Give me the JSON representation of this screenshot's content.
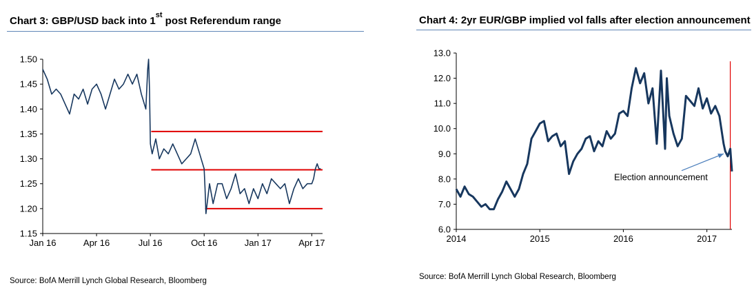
{
  "charts": [
    {
      "title_pre": "Chart 3: GBP/USD back into 1",
      "title_sup": "st",
      "title_post": " post Referendum range",
      "source": "Source: BofA Merrill Lynch Global Research, Bloomberg"
    },
    {
      "title": "Chart 4: 2yr EUR/GBP implied vol falls after election announcement",
      "source": "Source: BofA Merrill Lynch Global Research, Bloomberg"
    }
  ],
  "colors": {
    "series": "#17375e",
    "range_line": "#e00000",
    "title_rule": "#5f86b6",
    "arrow": "#4f81bd",
    "axis": "#000000"
  },
  "chart_data": [
    {
      "type": "line",
      "title": "Chart 3: GBP/USD back into 1st post Referendum range",
      "xlabel": "",
      "ylabel": "",
      "x_ticks": [
        "Jan 16",
        "Apr 16",
        "Jul 16",
        "Oct 16",
        "Jan 17",
        "Apr 17"
      ],
      "x_tick_pos": [
        0,
        3,
        6,
        9,
        12,
        15
      ],
      "xlim": [
        0,
        15.6
      ],
      "ylim": [
        1.15,
        1.5
      ],
      "y_ticks": [
        1.5,
        1.45,
        1.4,
        1.35,
        1.3,
        1.25,
        1.2,
        1.15
      ],
      "series": [
        {
          "name": "GBP/USD",
          "x": [
            0,
            0.25,
            0.5,
            0.75,
            1,
            1.25,
            1.5,
            1.75,
            2,
            2.25,
            2.5,
            2.75,
            3,
            3.25,
            3.5,
            3.75,
            4,
            4.25,
            4.5,
            4.75,
            5,
            5.25,
            5.5,
            5.75,
            5.85,
            5.9,
            5.95,
            6,
            6.1,
            6.3,
            6.5,
            6.75,
            7,
            7.25,
            7.5,
            7.75,
            8,
            8.25,
            8.5,
            8.75,
            9,
            9.05,
            9.1,
            9.2,
            9.3,
            9.5,
            9.75,
            10,
            10.25,
            10.5,
            10.75,
            11,
            11.25,
            11.5,
            11.75,
            12,
            12.25,
            12.5,
            12.75,
            13,
            13.25,
            13.5,
            13.75,
            14,
            14.25,
            14.5,
            14.75,
            15,
            15.1,
            15.2,
            15.3,
            15.4,
            15.5
          ],
          "values": [
            1.48,
            1.46,
            1.43,
            1.44,
            1.43,
            1.41,
            1.39,
            1.43,
            1.42,
            1.44,
            1.41,
            1.44,
            1.45,
            1.43,
            1.4,
            1.43,
            1.46,
            1.44,
            1.45,
            1.47,
            1.45,
            1.47,
            1.43,
            1.4,
            1.48,
            1.5,
            1.44,
            1.33,
            1.31,
            1.34,
            1.3,
            1.32,
            1.31,
            1.33,
            1.31,
            1.29,
            1.3,
            1.31,
            1.34,
            1.31,
            1.28,
            1.24,
            1.19,
            1.22,
            1.25,
            1.21,
            1.25,
            1.25,
            1.22,
            1.24,
            1.27,
            1.23,
            1.24,
            1.21,
            1.24,
            1.22,
            1.25,
            1.23,
            1.26,
            1.25,
            1.24,
            1.25,
            1.21,
            1.24,
            1.26,
            1.24,
            1.25,
            1.25,
            1.26,
            1.28,
            1.29,
            1.28,
            1.28
          ]
        }
      ],
      "range_lines": [
        {
          "y": 1.355,
          "x_from": 6.05,
          "x_to": 15.6
        },
        {
          "y": 1.278,
          "x_from": 6.05,
          "x_to": 15.6
        },
        {
          "y": 1.2,
          "x_from": 9.05,
          "x_to": 15.6
        }
      ]
    },
    {
      "type": "line",
      "title": "Chart 4: 2yr EUR/GBP implied vol falls after election announcement",
      "xlabel": "",
      "ylabel": "",
      "x_ticks": [
        "2014",
        "2015",
        "2016",
        "2017"
      ],
      "x_tick_pos": [
        2014,
        2015,
        2016,
        2017
      ],
      "xlim": [
        2014,
        2017.3
      ],
      "ylim": [
        6.0,
        13.0
      ],
      "y_ticks": [
        13.0,
        12.0,
        11.0,
        10.0,
        9.0,
        8.0,
        7.0,
        6.0
      ],
      "series": [
        {
          "name": "2yr EUR/GBP implied vol",
          "x": [
            2014,
            2014.05,
            2014.1,
            2014.15,
            2014.2,
            2014.25,
            2014.3,
            2014.35,
            2014.4,
            2014.45,
            2014.5,
            2014.55,
            2014.6,
            2014.65,
            2014.7,
            2014.75,
            2014.8,
            2014.85,
            2014.9,
            2014.95,
            2015,
            2015.05,
            2015.1,
            2015.15,
            2015.2,
            2015.25,
            2015.3,
            2015.35,
            2015.4,
            2015.45,
            2015.5,
            2015.55,
            2015.6,
            2015.65,
            2015.7,
            2015.75,
            2015.8,
            2015.85,
            2015.9,
            2015.95,
            2016,
            2016.05,
            2016.1,
            2016.15,
            2016.2,
            2016.25,
            2016.3,
            2016.35,
            2016.4,
            2016.45,
            2016.5,
            2016.52,
            2016.55,
            2016.6,
            2016.65,
            2016.7,
            2016.75,
            2016.8,
            2016.85,
            2016.9,
            2016.95,
            2017,
            2017.05,
            2017.1,
            2017.15,
            2017.2,
            2017.22,
            2017.25,
            2017.28,
            2017.3
          ],
          "values": [
            7.6,
            7.3,
            7.7,
            7.4,
            7.3,
            7.1,
            6.9,
            7.0,
            6.8,
            6.8,
            7.2,
            7.5,
            7.9,
            7.6,
            7.3,
            7.6,
            8.2,
            8.6,
            9.6,
            9.9,
            10.2,
            10.3,
            9.5,
            9.7,
            9.8,
            9.3,
            9.5,
            8.2,
            8.7,
            9.0,
            9.2,
            9.6,
            9.7,
            9.1,
            9.5,
            9.3,
            9.9,
            9.6,
            9.8,
            10.6,
            10.7,
            10.5,
            11.6,
            12.4,
            11.8,
            12.2,
            11.0,
            11.6,
            9.4,
            12.3,
            9.2,
            12.0,
            10.5,
            9.8,
            9.3,
            9.6,
            11.3,
            11.1,
            10.9,
            11.6,
            10.8,
            11.2,
            10.6,
            10.9,
            10.5,
            9.4,
            9.1,
            8.9,
            9.2,
            8.3
          ]
        }
      ],
      "event_line_x": 2017.28,
      "annotation": {
        "text": "Election announcement",
        "x": 2016.45,
        "y": 7.95,
        "arrow_to_x": 2017.2,
        "arrow_to_y": 9.0
      }
    }
  ]
}
